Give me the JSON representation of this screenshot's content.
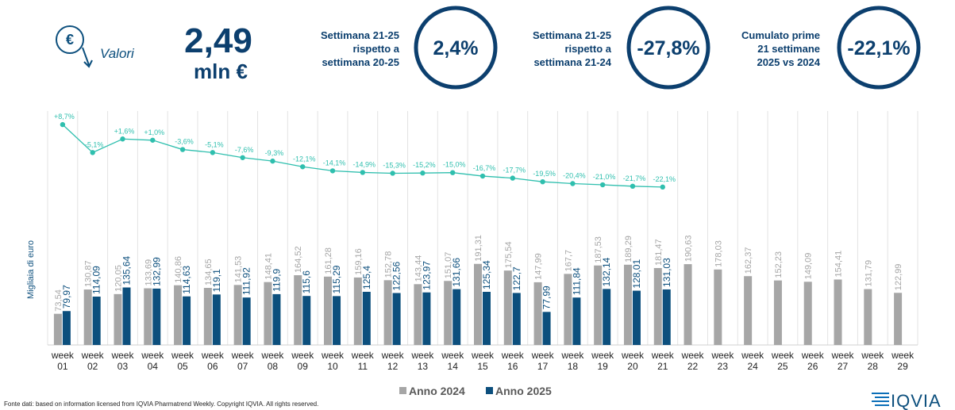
{
  "header": {
    "icon_symbol": "€",
    "icon_label": "Valori",
    "total_value": "2,49",
    "total_unit": "mln €"
  },
  "kpis": [
    {
      "label": [
        "Settimana 21-25",
        "rispetto a",
        "settimana 20-25"
      ],
      "value": "2,4%"
    },
    {
      "label": [
        "Settimana 21-25",
        "rispetto a",
        "settimana 21-24"
      ],
      "value": "-27,8%"
    },
    {
      "label": [
        "Cumulato prime",
        "21 settimane",
        "2025 vs 2024"
      ],
      "value": "-22,1%"
    }
  ],
  "chart_data": {
    "type": "bar",
    "y_label": "Migliaia di euro",
    "categories": [
      "week 01",
      "week 02",
      "week 03",
      "week 04",
      "week 05",
      "week 06",
      "week 07",
      "week 08",
      "week 09",
      "week 10",
      "week 11",
      "week 12",
      "week 13",
      "week 14",
      "week 15",
      "week 16",
      "week 17",
      "week 18",
      "week 19",
      "week 20",
      "week 21",
      "week 22",
      "week 23",
      "week 24",
      "week 25",
      "week 26",
      "week 27",
      "week 28",
      "week 29"
    ],
    "ylim": [
      0,
      550
    ],
    "y2lim": [
      -100,
      15
    ],
    "series": [
      {
        "name": "Anno 2024",
        "color": "#a6a6a6",
        "values": [
          73.54,
          130.87,
          120.05,
          133.69,
          140.86,
          134.65,
          141.53,
          148.41,
          164.52,
          161.28,
          159.16,
          152.78,
          143.44,
          151.07,
          191.31,
          175.54,
          147.99,
          167.7,
          187.53,
          189.29,
          181.47,
          190.63,
          178.03,
          162.37,
          152.23,
          149.09,
          154.41,
          131.79,
          122.99
        ],
        "value_labels": [
          "73,54",
          "130,87",
          "120,05",
          "133,69",
          "140,86",
          "134,65",
          "141,53",
          "148,41",
          "164,52",
          "161,28",
          "159,16",
          "152,78",
          "143,44",
          "151,07",
          "191,31",
          "175,54",
          "147,99",
          "167,7",
          "187,53",
          "189,29",
          "181,47",
          "190,63",
          "178,03",
          "162,37",
          "152,23",
          "149,09",
          "154,41",
          "131,79",
          "122,99"
        ]
      },
      {
        "name": "Anno 2025",
        "color": "#0c4f7d",
        "values": [
          79.97,
          114.09,
          135.64,
          132.99,
          114.63,
          119.1,
          111.92,
          119.9,
          115.6,
          115.29,
          125.4,
          122.56,
          123.97,
          131.66,
          125.34,
          122.7,
          77.99,
          111.84,
          132.14,
          128.01,
          131.03,
          null,
          null,
          null,
          null,
          null,
          null,
          null,
          null
        ],
        "value_labels": [
          "79,97",
          "114,09",
          "135,64",
          "132,99",
          "114,63",
          "119,1",
          "111,92",
          "119,9",
          "115,6",
          "115,29",
          "125,4",
          "122,56",
          "123,97",
          "131,66",
          "125,34",
          "122,7",
          "77,99",
          "111,84",
          "132,14",
          "128,01",
          "131,03",
          null,
          null,
          null,
          null,
          null,
          null,
          null,
          null
        ]
      }
    ],
    "line": {
      "axis": "y2",
      "color": "#2fbfae",
      "values": [
        8.7,
        -5.1,
        1.6,
        1.0,
        -3.6,
        -5.1,
        -7.6,
        -9.3,
        -12.1,
        -14.1,
        -14.9,
        -15.3,
        -15.2,
        -15.0,
        -16.7,
        -17.7,
        -19.5,
        -20.4,
        -21.0,
        -21.7,
        -22.1
      ],
      "value_labels": [
        "+8,7%",
        "-5,1%",
        "+1,6%",
        "+1,0%",
        "-3,6%",
        "-5,1%",
        "-7,6%",
        "-9,3%",
        "-12,1%",
        "-14,1%",
        "-14,9%",
        "-15,3%",
        "-15,2%",
        "-15,0%",
        "-16,7%",
        "-17,7%",
        "-19,5%",
        "-20,4%",
        "-21,0%",
        "-21,7%",
        "-22,1%"
      ]
    }
  },
  "footer": {
    "source": "Fonte dati: based on information licensed from IQVIA Pharmatrend Weekly. Copyright IQVIA. All rights reserved.",
    "logo": "IQVIA"
  }
}
